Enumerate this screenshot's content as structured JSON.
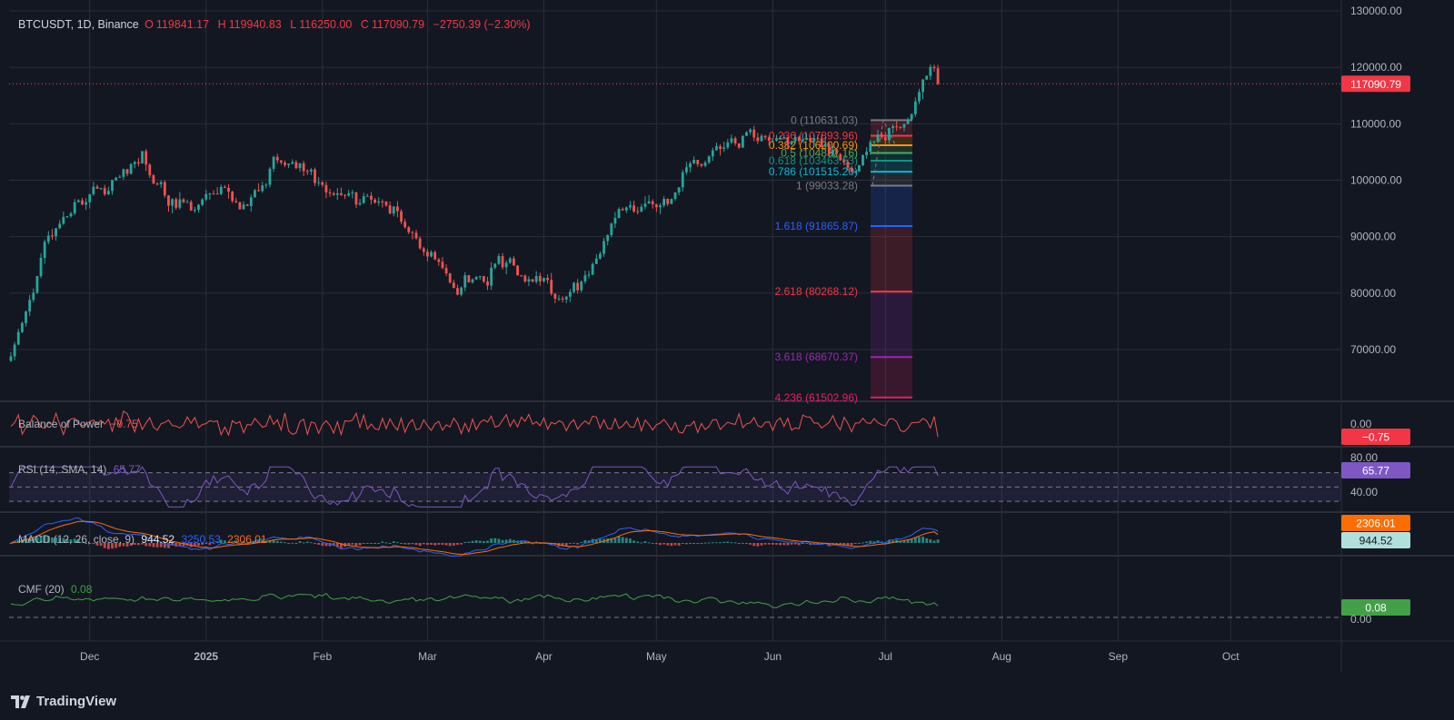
{
  "header": {
    "symbol": "BTCUSDT, 1D, Binance",
    "open_label": "O",
    "open": "119841.17",
    "high_label": "H",
    "high": "119940.83",
    "low_label": "L",
    "low": "116250.00",
    "close_label": "C",
    "close": "117090.79",
    "change": "−2750.39 (−2.30%)"
  },
  "colors": {
    "background": "#131722",
    "up": "#26a69a",
    "down": "#ef5350",
    "grid": "#2a2e39",
    "bop": "#ef5350",
    "rsi": "#7e57c2",
    "macd": "#2962ff",
    "signal": "#ff6d00",
    "cmf": "#43a047"
  },
  "chart_data": [
    {
      "type": "candlestick",
      "title": "BTCUSDT, 1D, Binance",
      "x_tick_labels": [
        "Dec",
        "2025",
        "Feb",
        "Mar",
        "Apr",
        "May",
        "Jun",
        "Jul",
        "Aug",
        "Sep",
        "Oct"
      ],
      "y_tick_labels": [
        "130000.00",
        "120000.00",
        "110000.00",
        "100000.00",
        "90000.00",
        "80000.00",
        "70000.00"
      ],
      "ylim": [
        62000,
        130500
      ],
      "last_price_label": "117090.79",
      "last_price": 117090.79,
      "grid": true,
      "weekly_closes_approx": [
        {
          "date": "2024-11-10",
          "close": 68000
        },
        {
          "date": "2024-11-17",
          "close": 84000
        },
        {
          "date": "2024-11-24",
          "close": 94000
        },
        {
          "date": "2024-12-01",
          "close": 97000
        },
        {
          "date": "2024-12-08",
          "close": 99000
        },
        {
          "date": "2024-12-15",
          "close": 104000
        },
        {
          "date": "2024-12-22",
          "close": 96000
        },
        {
          "date": "2024-12-29",
          "close": 95000
        },
        {
          "date": "2025-01-05",
          "close": 98000
        },
        {
          "date": "2025-01-12",
          "close": 95000
        },
        {
          "date": "2025-01-19",
          "close": 104000
        },
        {
          "date": "2025-01-26",
          "close": 104000
        },
        {
          "date": "2025-02-02",
          "close": 98000
        },
        {
          "date": "2025-02-09",
          "close": 97000
        },
        {
          "date": "2025-02-16",
          "close": 97000
        },
        {
          "date": "2025-02-23",
          "close": 92000
        },
        {
          "date": "2025-03-02",
          "close": 86000
        },
        {
          "date": "2025-03-09",
          "close": 82000
        },
        {
          "date": "2025-03-16",
          "close": 84000
        },
        {
          "date": "2025-03-23",
          "close": 86000
        },
        {
          "date": "2025-03-30",
          "close": 84000
        },
        {
          "date": "2025-04-06",
          "close": 78000
        },
        {
          "date": "2025-04-13",
          "close": 84000
        },
        {
          "date": "2025-04-20",
          "close": 93000
        },
        {
          "date": "2025-04-27",
          "close": 95000
        },
        {
          "date": "2025-05-04",
          "close": 96000
        },
        {
          "date": "2025-05-11",
          "close": 104000
        },
        {
          "date": "2025-05-18",
          "close": 104000
        },
        {
          "date": "2025-05-25",
          "close": 109000
        },
        {
          "date": "2025-06-01",
          "close": 105000
        },
        {
          "date": "2025-06-08",
          "close": 106000
        },
        {
          "date": "2025-06-15",
          "close": 106000
        },
        {
          "date": "2025-06-22",
          "close": 101000
        },
        {
          "date": "2025-06-29",
          "close": 108000
        },
        {
          "date": "2025-07-06",
          "close": 109000
        },
        {
          "date": "2025-07-13",
          "close": 119000
        }
      ],
      "last_candle": {
        "open": 119841.17,
        "high": 119940.83,
        "low": 116250.0,
        "close": 117090.79
      }
    },
    {
      "type": "fibonacci_extension",
      "levels": [
        {
          "ratio": 0,
          "price": 110631.03,
          "label": "0 (110631.03)",
          "color": "#787b86"
        },
        {
          "ratio": 0.236,
          "price": 107893.96,
          "label": "0.236 (107893.96)",
          "color": "#f23645"
        },
        {
          "ratio": 0.382,
          "price": 106200.69,
          "label": "0.382 (106200.69)",
          "color": "#ff9800"
        },
        {
          "ratio": 0.5,
          "price": 104832.16,
          "label": "0.5 (104832.16)",
          "color": "#4caf50"
        },
        {
          "ratio": 0.618,
          "price": 103463.63,
          "label": "0.618 (103463.63)",
          "color": "#089981"
        },
        {
          "ratio": 0.786,
          "price": 101515.2,
          "label": "0.786 (101515.20)",
          "color": "#00bcd4"
        },
        {
          "ratio": 1,
          "price": 99033.28,
          "label": "1 (99033.28)",
          "color": "#787b86"
        },
        {
          "ratio": 1.618,
          "price": 91865.87,
          "label": "1.618 (91865.87)",
          "color": "#2962ff"
        },
        {
          "ratio": 2.618,
          "price": 80268.12,
          "label": "2.618 (80268.12)",
          "color": "#f23645"
        },
        {
          "ratio": 3.618,
          "price": 68670.37,
          "label": "3.618 (68670.37)",
          "color": "#9c27b0"
        },
        {
          "ratio": 4.236,
          "price": 61502.96,
          "label": "4.236 (61502.96)",
          "color": "#e91e63"
        }
      ]
    },
    {
      "type": "line",
      "title": "Balance of Power",
      "legend_value": "−0.75",
      "axis_label": "0.00",
      "last_value_badge": "−0.75",
      "last_value": -0.75
    },
    {
      "type": "line",
      "title": "RSI (14, SMA, 14)",
      "legend_value": "65.77",
      "axis_labels": [
        "80.00",
        "40.00"
      ],
      "last_value_badge": "65.77",
      "last_value": 65.77,
      "band": [
        30,
        70
      ]
    },
    {
      "type": "line",
      "title": "MACD (12, 26, close, 9)",
      "series": [
        {
          "name": "Histogram",
          "last": 944.52
        },
        {
          "name": "MACD",
          "last": 3250.53
        },
        {
          "name": "Signal",
          "last": 2306.01
        }
      ],
      "legend_values": [
        "944.52",
        "3250.53",
        "2306.01"
      ],
      "badges": [
        "2306.01",
        "944.52"
      ]
    },
    {
      "type": "line",
      "title": "CMF (20)",
      "legend_value": "0.08",
      "axis_label": "0.00",
      "last_value_badge": "0.08",
      "last_value": 0.08
    }
  ],
  "footer": {
    "brand": "TradingView",
    "logo_icon": "tradingview-logo-icon"
  }
}
